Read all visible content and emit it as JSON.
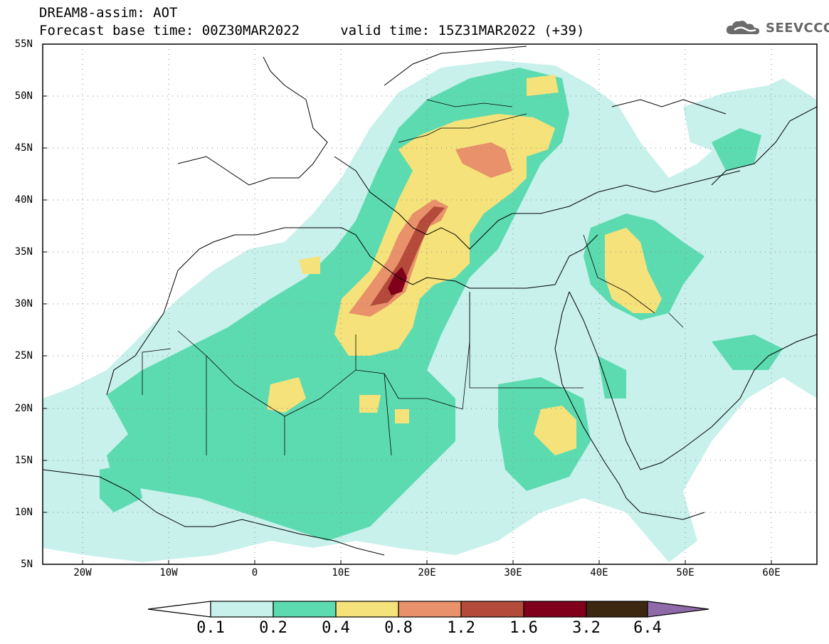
{
  "header": {
    "title_line1": "DREAM8-assim: AOT",
    "title_line2": "Forecast base time: 00Z30MAR2022     valid time: 15Z31MAR2022 (+39)",
    "logo_text": "SEEVCCC"
  },
  "map": {
    "variable": "AOT",
    "lon_range": [
      -25,
      65
    ],
    "lat_range": [
      5,
      55
    ],
    "lat_labels": [
      "55N",
      "50N",
      "45N",
      "40N",
      "35N",
      "30N",
      "25N",
      "20N",
      "15N",
      "10N",
      "5N"
    ],
    "lon_labels": [
      "20W",
      "10W",
      "0",
      "10E",
      "20E",
      "30E",
      "40E",
      "50E",
      "60E"
    ]
  },
  "colorbar": {
    "levels": [
      "0.1",
      "0.2",
      "0.4",
      "0.8",
      "1.2",
      "1.6",
      "3.2",
      "6.4"
    ],
    "colors": [
      "#ffffff",
      "#c8f1eb",
      "#5ddbb0",
      "#f5e27a",
      "#e8916a",
      "#b34a3a",
      "#80001c",
      "#3c2810",
      "#8f6aa8"
    ]
  },
  "colors": {
    "c1": "#c8f1eb",
    "c2": "#5ddbb0",
    "c3": "#f5e27a",
    "c4": "#e8916a",
    "c5": "#b34a3a",
    "c6": "#80001c"
  }
}
